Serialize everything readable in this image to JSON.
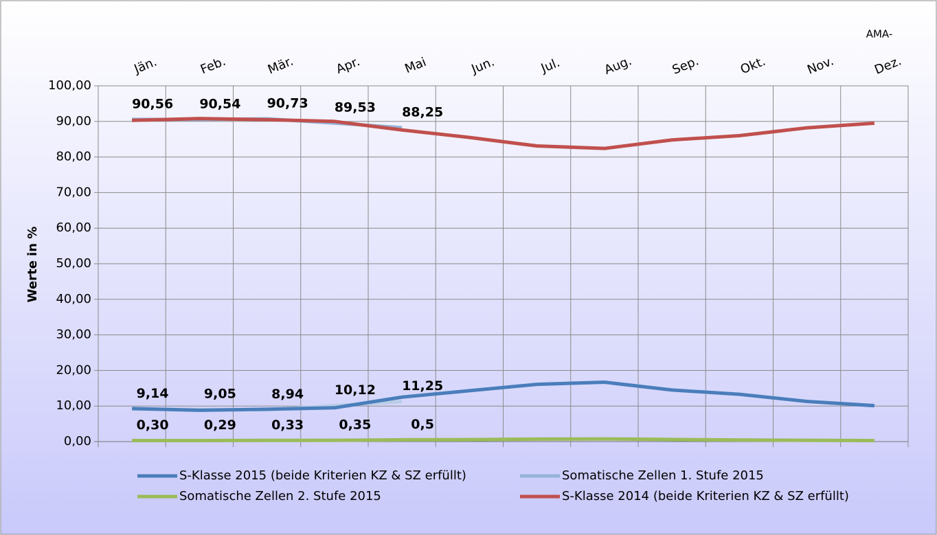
{
  "chart_data": {
    "type": "line",
    "y_label": "Werte in %",
    "annotation": "AMA-",
    "categories": [
      "Jän.",
      "Feb.",
      "Mär.",
      "Apr.",
      "Mai",
      "Jun.",
      "Jul.",
      "Aug.",
      "Sep.",
      "Okt.",
      "Nov.",
      "Dez."
    ],
    "series": [
      {
        "name": "S-Klasse 2015 (beide Kriterien KZ & SZ erfüllt)",
        "color": "#4a7ebb",
        "values": [
          9.3,
          8.8,
          9.1,
          9.5,
          12.5,
          14.3,
          16.1,
          16.7,
          14.5,
          13.3,
          11.3,
          10.1
        ]
      },
      {
        "name": "Somatische Zellen 1. Stufe 2015",
        "color": "#95b3d7",
        "values": [
          90.56,
          90.54,
          90.73,
          89.53,
          88.25,
          null,
          null,
          null,
          null,
          null,
          null,
          null
        ],
        "value_labels": [
          "90,56",
          "90,54",
          "90,73",
          "89,53",
          "88,25",
          null,
          null,
          null,
          null,
          null,
          null,
          null
        ]
      },
      {
        "name": "Somatische Zellen 2. Stufe 2015",
        "color": "#9bbb59",
        "values": [
          0.3,
          0.29,
          0.33,
          0.35,
          0.5,
          0.55,
          0.7,
          0.75,
          0.6,
          0.45,
          0.35,
          0.3
        ],
        "value_labels": [
          "0,30",
          "0,29",
          "0,33",
          "0,35",
          "0,5",
          null,
          null,
          null,
          null,
          null,
          null,
          null
        ]
      },
      {
        "name": "S-Klasse 2014 (beide Kriterien KZ & SZ erfüllt)",
        "color": "#c0504d",
        "values": [
          90.3,
          90.8,
          90.5,
          90.0,
          87.6,
          85.5,
          83.1,
          82.4,
          84.8,
          86.0,
          88.2,
          89.5
        ]
      },
      {
        "color": "#b9cde5",
        "values": [
          9.14,
          9.05,
          8.94,
          10.12,
          11.25,
          null,
          null,
          null,
          null,
          null,
          null,
          null
        ],
        "value_labels": [
          "9,14",
          "9,05",
          "8,94",
          "10,12",
          "11,25",
          null,
          null,
          null,
          null,
          null,
          null,
          null
        ]
      }
    ],
    "ylim": [
      0,
      100
    ],
    "yticks": [
      {
        "value": 0,
        "label": "0,00"
      },
      {
        "value": 10,
        "label": "10,00"
      },
      {
        "value": 20,
        "label": "20,00"
      },
      {
        "value": 30,
        "label": "30,00"
      },
      {
        "value": 40,
        "label": "40,00"
      },
      {
        "value": 50,
        "label": "50,00"
      },
      {
        "value": 60,
        "label": "60,00"
      },
      {
        "value": 70,
        "label": "70,00"
      },
      {
        "value": 80,
        "label": "80,00"
      },
      {
        "value": 90,
        "label": "90,00"
      },
      {
        "value": 100,
        "label": "100,00"
      }
    ],
    "grid": true
  }
}
